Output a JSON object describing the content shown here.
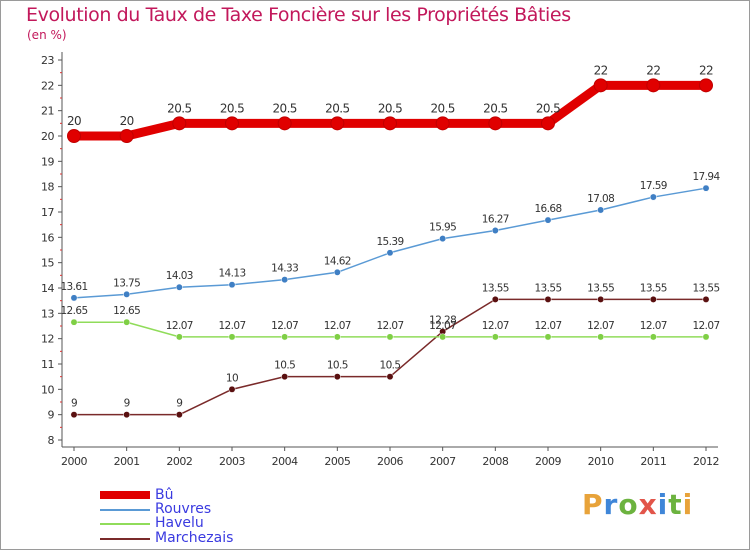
{
  "chart_data": {
    "type": "line",
    "title": "Evolution du Taux de Taxe Foncière sur les Propriétés Bâties",
    "subtitle": "(en %)",
    "categories": [
      "2000",
      "2001",
      "2002",
      "2003",
      "2004",
      "2005",
      "2006",
      "2007",
      "2008",
      "2009",
      "2010",
      "2011",
      "2012"
    ],
    "ylim": [
      8,
      23
    ],
    "yticks": [
      "8",
      "9",
      "10",
      "11",
      "12",
      "13",
      "14",
      "15",
      "16",
      "17",
      "18",
      "19",
      "20",
      "21",
      "22",
      "23"
    ],
    "grid": false,
    "legend_position": "bottom-left",
    "series": [
      {
        "name": "Bû",
        "color": "#e00000",
        "values": [
          20,
          20,
          20.5,
          20.5,
          20.5,
          20.5,
          20.5,
          20.5,
          20.5,
          20.5,
          22,
          22,
          22
        ],
        "labels": [
          "20",
          "20",
          "20.5",
          "20.5",
          "20.5",
          "20.5",
          "20.5",
          "20.5",
          "20.5",
          "20.5",
          "22",
          "22",
          "22"
        ]
      },
      {
        "name": "Rouvres",
        "color": "#5a9ad5",
        "values": [
          13.61,
          13.75,
          14.03,
          14.13,
          14.33,
          14.62,
          15.39,
          15.95,
          16.27,
          16.68,
          17.08,
          17.59,
          17.94
        ],
        "labels": [
          "13.61",
          "13.75",
          "14.03",
          "14.13",
          "14.33",
          "14.62",
          "15.39",
          "15.95",
          "16.27",
          "16.68",
          "17.08",
          "17.59",
          "17.94"
        ]
      },
      {
        "name": "Havelu",
        "color": "#90dc5a",
        "values": [
          12.65,
          12.65,
          12.07,
          12.07,
          12.07,
          12.07,
          12.07,
          12.07,
          12.07,
          12.07,
          12.07,
          12.07,
          12.07
        ],
        "labels": [
          "12.65",
          "12.65",
          "12.07",
          "12.07",
          "12.07",
          "12.07",
          "12.07",
          "12.07",
          "12.07",
          "12.07",
          "12.07",
          "12.07",
          "12.07"
        ]
      },
      {
        "name": "Marchezais",
        "color": "#7a2a2a",
        "values": [
          9,
          9,
          9,
          10,
          10.5,
          10.5,
          10.5,
          12.28,
          13.55,
          13.55,
          13.55,
          13.55,
          13.55
        ],
        "labels": [
          "9",
          "9",
          "9",
          "10",
          "10.5",
          "10.5",
          "10.5",
          "12.28",
          "13.55",
          "13.55",
          "13.55",
          "13.55",
          "13.55"
        ]
      }
    ]
  },
  "logo": {
    "letters": [
      "P",
      "r",
      "o",
      "x",
      "i",
      "t",
      "i"
    ]
  }
}
